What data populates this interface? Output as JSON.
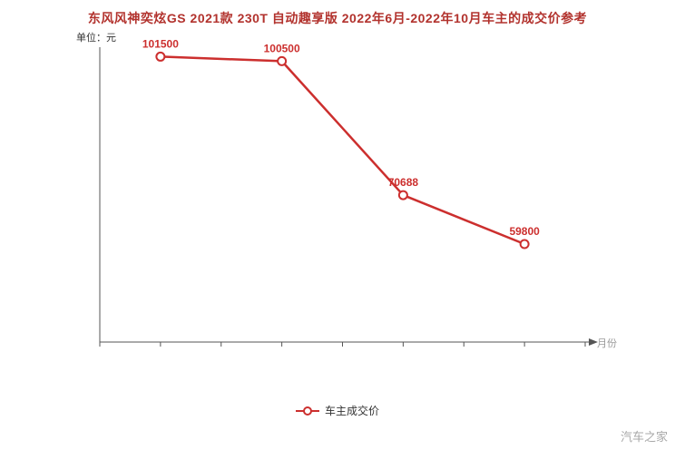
{
  "header": {
    "title": "东风风神奕炫GS 2021款 230T 自动趣享版 2022年6月-2022年10月车主的成交价参考"
  },
  "chart": {
    "unit_label": "单位：元",
    "x_axis_label": "月份",
    "legend_label": "车主成交价"
  },
  "watermark": "汽车之家",
  "colors": {
    "line": "#cc2f2e",
    "point_label": "#cc2f2e",
    "title": "#b2322d",
    "axis": "#555555",
    "muted": "#999999"
  },
  "chart_data": {
    "type": "line",
    "title": "东风风神奕炫GS 2021款 230T 自动趣享版 2022年6月-2022年10月车主的成交价参考",
    "xlabel": "月份",
    "ylabel": "单位：元",
    "legend": [
      "车主成交价"
    ],
    "legend_position": "bottom",
    "grid": false,
    "ylim": [
      38000,
      103000
    ],
    "series": [
      {
        "name": "车主成交价",
        "values": [
          101500,
          100500,
          70688,
          59800
        ]
      }
    ],
    "point_labels": [
      "101500",
      "100500",
      "70688",
      "59800"
    ]
  }
}
